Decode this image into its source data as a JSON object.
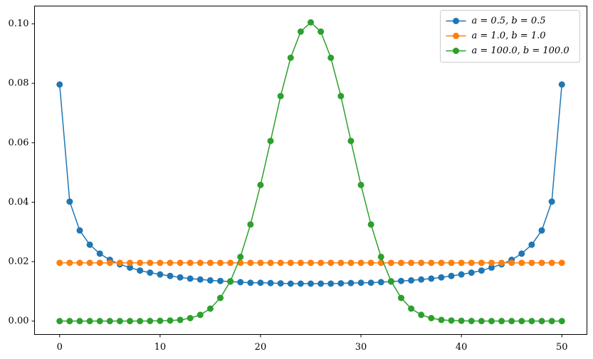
{
  "chart_data": {
    "type": "line",
    "x": [
      0,
      1,
      2,
      3,
      4,
      5,
      6,
      7,
      8,
      9,
      10,
      11,
      12,
      13,
      14,
      15,
      16,
      17,
      18,
      19,
      20,
      21,
      22,
      23,
      24,
      25,
      26,
      27,
      28,
      29,
      30,
      31,
      32,
      33,
      34,
      35,
      36,
      37,
      38,
      39,
      40,
      41,
      42,
      43,
      44,
      45,
      46,
      47,
      48,
      49,
      50
    ],
    "series": [
      {
        "name": "a = 0.5, b = 0.5",
        "color": "#1f77b4",
        "values": [
          0.0796,
          0.0402,
          0.0305,
          0.0257,
          0.0227,
          0.0206,
          0.0191,
          0.018,
          0.017,
          0.0163,
          0.0157,
          0.0152,
          0.0147,
          0.0143,
          0.014,
          0.0137,
          0.0135,
          0.0133,
          0.0131,
          0.0129,
          0.0129,
          0.0128,
          0.0127,
          0.0126,
          0.0126,
          0.0126,
          0.0126,
          0.0126,
          0.0127,
          0.0128,
          0.0129,
          0.0129,
          0.0131,
          0.0133,
          0.0135,
          0.0137,
          0.014,
          0.0143,
          0.0147,
          0.0152,
          0.0157,
          0.0163,
          0.017,
          0.018,
          0.0191,
          0.0206,
          0.0227,
          0.0257,
          0.0305,
          0.0402,
          0.0796
        ]
      },
      {
        "name": "a = 1.0, b = 1.0",
        "color": "#ff7f0e",
        "values": [
          0.0196,
          0.0196,
          0.0196,
          0.0196,
          0.0196,
          0.0196,
          0.0196,
          0.0196,
          0.0196,
          0.0196,
          0.0196,
          0.0196,
          0.0196,
          0.0196,
          0.0196,
          0.0196,
          0.0196,
          0.0196,
          0.0196,
          0.0196,
          0.0196,
          0.0196,
          0.0196,
          0.0196,
          0.0196,
          0.0196,
          0.0196,
          0.0196,
          0.0196,
          0.0196,
          0.0196,
          0.0196,
          0.0196,
          0.0196,
          0.0196,
          0.0196,
          0.0196,
          0.0196,
          0.0196,
          0.0196,
          0.0196,
          0.0196,
          0.0196,
          0.0196,
          0.0196,
          0.0196,
          0.0196,
          0.0196,
          0.0196,
          0.0196,
          0.0196
        ]
      },
      {
        "name": "a = 100.0, b = 100.0",
        "color": "#2ca02c",
        "values": [
          0,
          0,
          0,
          0,
          0,
          0,
          0,
          0,
          0,
          3e-05,
          0.0001,
          0.0002,
          0.0004,
          0.001,
          0.0021,
          0.0042,
          0.0078,
          0.0134,
          0.0216,
          0.0325,
          0.0458,
          0.0606,
          0.0757,
          0.0886,
          0.0974,
          0.1005,
          0.0974,
          0.0886,
          0.0757,
          0.0606,
          0.0458,
          0.0325,
          0.0216,
          0.0134,
          0.0078,
          0.0042,
          0.0021,
          0.001,
          0.0004,
          0.0002,
          0.0001,
          3e-05,
          0,
          0,
          0,
          0,
          0,
          0,
          0,
          0,
          0
        ]
      }
    ],
    "xlim": [
      -2.5,
      52.5
    ],
    "xticks": [
      0,
      10,
      20,
      30,
      40,
      50
    ],
    "ylim": [
      -0.0045,
      0.106
    ],
    "yticks": [
      {
        "value": 0,
        "label": "0.00"
      },
      {
        "value": 0.02,
        "label": "0.02"
      },
      {
        "value": 0.04,
        "label": "0.04"
      },
      {
        "value": 0.06,
        "label": "0.06"
      },
      {
        "value": 0.08,
        "label": "0.08"
      },
      {
        "value": 0.1,
        "label": "0.10"
      }
    ],
    "grid": false,
    "legend": "upper right"
  }
}
